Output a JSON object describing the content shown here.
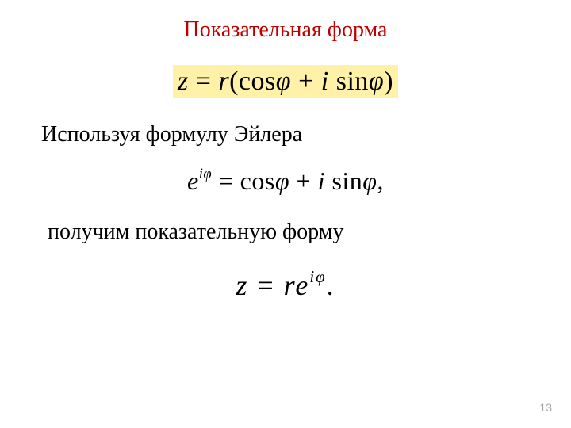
{
  "title": {
    "text": "Показательная форма",
    "color": "#c00000",
    "fontsize": 28
  },
  "formula1": {
    "content_html": "<span class='upright'></span>z <span class='upright'>=</span> r<span class='upright'>(cos</span>&#966; <span class='upright'>+</span> i <span class='upright'>sin</span>&#966;<span class='upright'>)</span>",
    "highlight_bg": "#fff2a8",
    "fontsize": 34,
    "color": "#000000"
  },
  "text1": {
    "text": "Используя формулу Эйлера",
    "fontsize": 28,
    "color": "#000000"
  },
  "formula2": {
    "content_html": "e<sup>i&#966;</sup> <span class='upright'>= cos</span>&#966; <span class='upright'>+</span> i <span class='upright'>sin</span>&#966;<span class='upright'>,</span>",
    "fontsize": 32,
    "color": "#000000"
  },
  "text2": {
    "text": "получим показательную форму",
    "fontsize": 28,
    "color": "#000000"
  },
  "formula3": {
    "content_html": "z <span class='upright'>=</span> re<sup>i&#966;</sup><span class='upright'>.</span>",
    "fontsize": 36,
    "color": "#000000"
  },
  "page_number": {
    "text": "13",
    "color": "#a6a6a6",
    "fontsize": 14
  },
  "background_color": "#ffffff"
}
